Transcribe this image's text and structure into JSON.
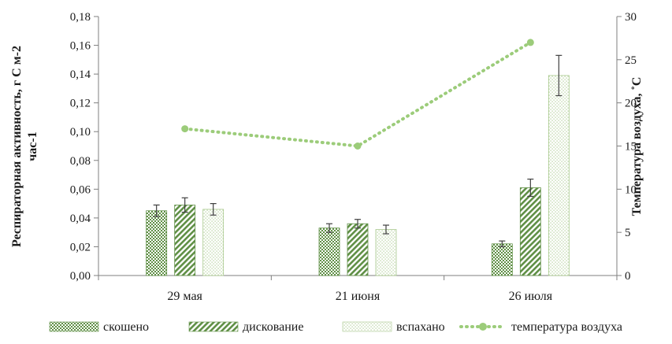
{
  "chart_data": {
    "type": "bar",
    "categories": [
      "29 мая",
      "21 июня",
      "26 июля"
    ],
    "series": [
      {
        "name": "скошено",
        "values": [
          0.045,
          0.033,
          0.022
        ],
        "errors": [
          0.004,
          0.003,
          0.002
        ],
        "color": "#5f8f45",
        "pattern": "checker"
      },
      {
        "name": "дискование",
        "values": [
          0.049,
          0.036,
          0.061
        ],
        "errors": [
          0.005,
          0.003,
          0.006
        ],
        "color": "#5f8f45",
        "pattern": "diagonal"
      },
      {
        "name": "вспахано",
        "values": [
          0.046,
          0.032,
          0.139
        ],
        "errors": [
          0.004,
          0.003,
          0.014
        ],
        "color": "#a9c98e",
        "pattern": "dots"
      }
    ],
    "line_series": {
      "name": "температура воздуха",
      "values": [
        17,
        15,
        27
      ],
      "color": "#9ccc7a",
      "axis": "right"
    },
    "ylabel": "Респираторная активность, г С м-2 час-1",
    "y2label": "Температура воздуха, ˚С",
    "ylim": [
      0,
      0.18
    ],
    "y2lim": [
      0,
      30
    ],
    "yticks": [
      "0,00",
      "0,02",
      "0,04",
      "0,06",
      "0,08",
      "0,10",
      "0,12",
      "0,14",
      "0,16",
      "0,18"
    ],
    "y2ticks": [
      "0",
      "5",
      "10",
      "15",
      "20",
      "25",
      "30"
    ],
    "legend_position": "bottom",
    "grid": false
  }
}
